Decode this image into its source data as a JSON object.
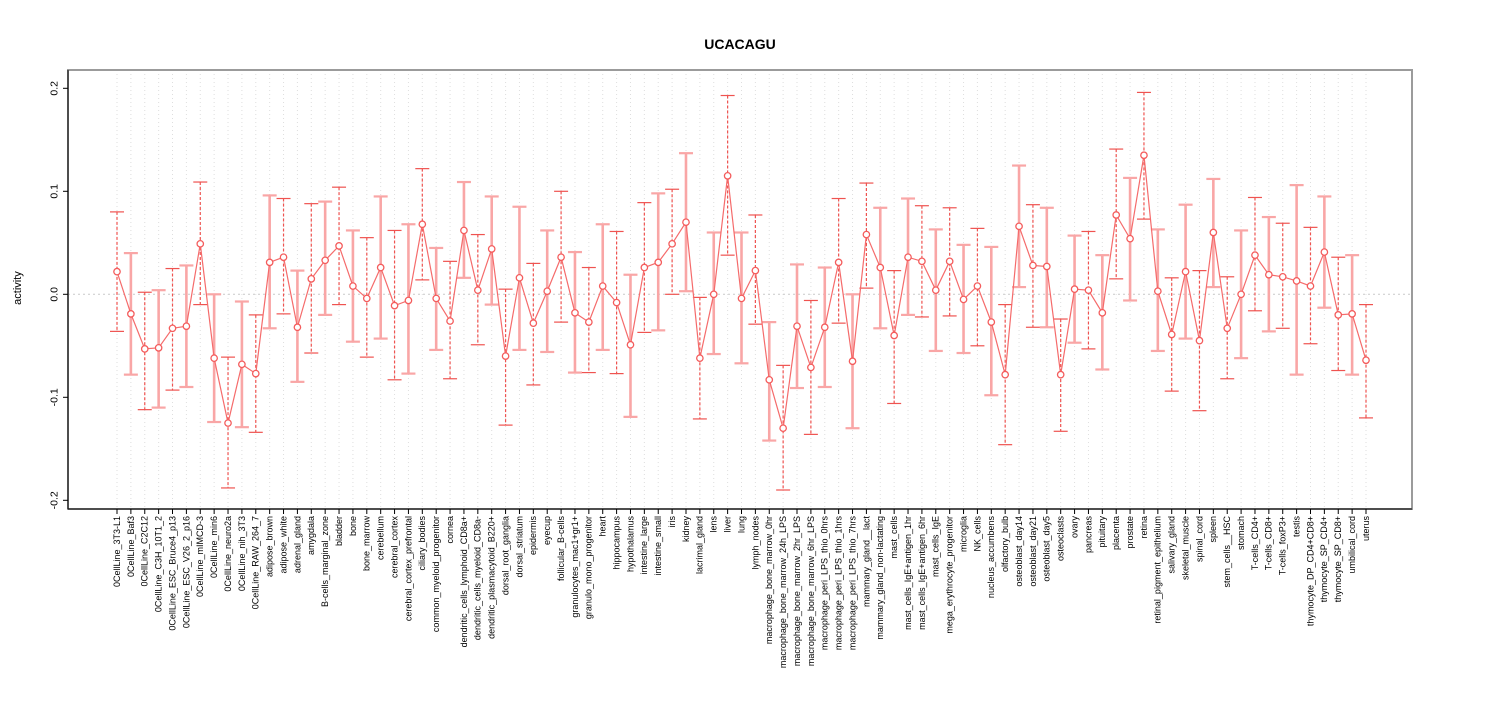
{
  "title": "UCACAGU",
  "ylabel": "activity",
  "colors": {
    "point": "#f45c5c",
    "line": "#f56b6b",
    "errorbar_dark": "#ef5350",
    "errorbar_light": "#f9a6a6",
    "grid": "#dedede",
    "zero_line": "#c9c9c9",
    "box_border": "#9b9b9b",
    "axis": "#000000"
  },
  "chart_data": {
    "type": "line",
    "subtype": "points-with-error-bars",
    "title": "UCACAGU",
    "xlabel": "",
    "ylabel": "activity",
    "ylim": [
      -0.2,
      0.2
    ],
    "yticks": [
      0.2,
      0.1,
      0.0,
      -0.1,
      -0.2
    ],
    "ytick_labels": [
      "0.2",
      "0.1",
      "0.0",
      "-0.1",
      "-0.2"
    ],
    "grid": "vertical dotted gridline at each category; dotted horizontal line at y=0",
    "legend_position": "none",
    "categories": [
      "0CellLine_3T3-L1",
      "0CellLine_Baf3",
      "0CellLine_C2C12",
      "0CellLine_C3H_10T1_2",
      "0CellLine_ESC_Bruce4_p13",
      "0CellLine_ESC_V26_2_p16",
      "0CellLine_mIMCD-3",
      "0CellLine_min6",
      "0CellLine_neuro2a",
      "0CellLine_nih_3T3",
      "0CellLine_RAW_264_7",
      "adipose_brown",
      "adipose_white",
      "adrenal_gland",
      "amygdala",
      "B-cells_marginal_zone",
      "bladder",
      "bone",
      "bone_marrow",
      "cerebellum",
      "cerebral_cortex",
      "cerebral_cortex_prefrontal",
      "ciliary_bodies",
      "common_myeloid_progenitor",
      "cornea",
      "dendritic_cells_lymphoid_CD8a+",
      "dendritic_cells_myeloid_CD8a-",
      "dendritic_plasmacytoid_B220+",
      "dorsal_root_ganglia",
      "dorsal_striatum",
      "epidermis",
      "eyecup",
      "follicular_B-cells",
      "granulocytes_mac1+gr1+",
      "granulo_mono_progenitor",
      "heart",
      "hippocampus",
      "hypothalamus",
      "intestine_large",
      "intestine_small",
      "iris",
      "kidney",
      "lacrimal_gland",
      "lens",
      "liver",
      "lung",
      "lymph_nodes",
      "macrophage_bone_marrow_0hr",
      "macrophage_bone_marrow_24h_LPS",
      "macrophage_bone_marrow_2hr_LPS",
      "macrophage_bone_marrow_6hr_LPS",
      "macrophage_peri_LPS_thio_0hrs",
      "macrophage_peri_LPS_thio_1hrs",
      "macrophage_peri_LPS_thio_7hrs",
      "mammary_gland__lact",
      "mammary_gland_non-lactating",
      "mast_cells",
      "mast_cells_IgE+antigen_1hr",
      "mast_cells_IgE+antigen_6hr",
      "mast_cells_IgE",
      "mega_erythrocyte_progenitor",
      "microglia",
      "NK_cells",
      "nucleus_accumbens",
      "olfactory_bulb",
      "osteoblast_day14",
      "osteoblast_day21",
      "osteoblast_day5",
      "osteoclasts",
      "ovary",
      "pancreas",
      "pituitary",
      "placenta",
      "prostate",
      "retina",
      "retinal_pigment_epithelium",
      "salivary_gland",
      "skeletal_muscle",
      "spinal_cord",
      "spleen",
      "stem_cells__HSC",
      "stomach",
      "T-cells_CD4+",
      "T-cells_CD8+",
      "T-cells_foxP3+",
      "testis",
      "thymocyte_DP_CD4+CD8+",
      "thymocyte_SP_CD4+",
      "thymocyte_SP_CD8+",
      "umbilical_cord",
      "uterus"
    ],
    "series": [
      {
        "name": "activity",
        "values": [
          0.022,
          -0.019,
          -0.053,
          -0.052,
          -0.033,
          -0.031,
          0.049,
          -0.062,
          -0.125,
          -0.068,
          -0.077,
          0.031,
          0.036,
          -0.032,
          0.015,
          0.033,
          0.047,
          0.008,
          -0.004,
          0.026,
          -0.011,
          -0.006,
          0.068,
          -0.004,
          -0.026,
          0.062,
          0.004,
          0.044,
          -0.06,
          0.016,
          -0.028,
          0.003,
          0.036,
          -0.018,
          -0.027,
          0.008,
          -0.008,
          -0.049,
          0.026,
          0.031,
          0.049,
          0.07,
          -0.062,
          0.0,
          0.115,
          -0.004,
          0.023,
          -0.083,
          -0.13,
          -0.031,
          -0.071,
          -0.032,
          0.031,
          -0.065,
          0.058,
          0.026,
          -0.04,
          0.036,
          0.032,
          0.004,
          0.032,
          -0.005,
          0.008,
          -0.027,
          -0.078,
          0.066,
          0.028,
          0.027,
          -0.078,
          0.005,
          0.004,
          -0.018,
          0.077,
          0.054,
          0.135,
          0.003,
          -0.039,
          0.022,
          -0.045,
          0.06,
          -0.033,
          0.0,
          0.038,
          0.019,
          0.017,
          0.013,
          0.008,
          0.041,
          -0.02,
          -0.019,
          -0.064
        ],
        "err_lo": [
          -0.036,
          -0.078,
          -0.112,
          -0.11,
          -0.093,
          -0.09,
          -0.01,
          -0.124,
          -0.188,
          -0.129,
          -0.134,
          -0.033,
          -0.019,
          -0.085,
          -0.057,
          -0.02,
          -0.01,
          -0.046,
          -0.061,
          -0.043,
          -0.083,
          -0.077,
          0.014,
          -0.054,
          -0.082,
          0.016,
          -0.049,
          -0.01,
          -0.127,
          -0.054,
          -0.088,
          -0.056,
          -0.027,
          -0.076,
          -0.076,
          -0.054,
          -0.077,
          -0.119,
          -0.037,
          -0.035,
          0.0,
          0.003,
          -0.121,
          -0.058,
          0.038,
          -0.067,
          -0.029,
          -0.142,
          -0.19,
          -0.091,
          -0.136,
          -0.09,
          -0.028,
          -0.13,
          0.006,
          -0.033,
          -0.106,
          -0.02,
          -0.022,
          -0.055,
          -0.021,
          -0.057,
          -0.05,
          -0.098,
          -0.146,
          0.007,
          -0.032,
          -0.032,
          -0.133,
          -0.047,
          -0.053,
          -0.073,
          0.015,
          -0.006,
          0.073,
          -0.055,
          -0.094,
          -0.043,
          -0.113,
          0.007,
          -0.082,
          -0.062,
          -0.016,
          -0.036,
          -0.033,
          -0.078,
          -0.048,
          -0.013,
          -0.074,
          -0.078,
          -0.12
        ],
        "err_hi": [
          0.08,
          0.04,
          0.002,
          0.004,
          0.025,
          0.028,
          0.109,
          0.0,
          -0.061,
          -0.007,
          -0.02,
          0.096,
          0.093,
          0.023,
          0.088,
          0.09,
          0.104,
          0.062,
          0.055,
          0.095,
          0.062,
          0.068,
          0.122,
          0.045,
          0.032,
          0.109,
          0.058,
          0.095,
          0.005,
          0.085,
          0.03,
          0.062,
          0.1,
          0.041,
          0.026,
          0.068,
          0.061,
          0.019,
          0.089,
          0.098,
          0.102,
          0.137,
          -0.003,
          0.06,
          0.193,
          0.06,
          0.077,
          -0.027,
          -0.069,
          0.029,
          -0.006,
          0.026,
          0.093,
          0.0,
          0.108,
          0.084,
          0.023,
          0.093,
          0.086,
          0.063,
          0.084,
          0.048,
          0.064,
          0.046,
          -0.01,
          0.125,
          0.087,
          0.084,
          -0.024,
          0.057,
          0.061,
          0.038,
          0.141,
          0.113,
          0.196,
          0.063,
          0.016,
          0.087,
          0.023,
          0.112,
          0.017,
          0.062,
          0.094,
          0.075,
          0.069,
          0.106,
          0.065,
          0.095,
          0.036,
          0.038,
          -0.01
        ]
      }
    ]
  }
}
